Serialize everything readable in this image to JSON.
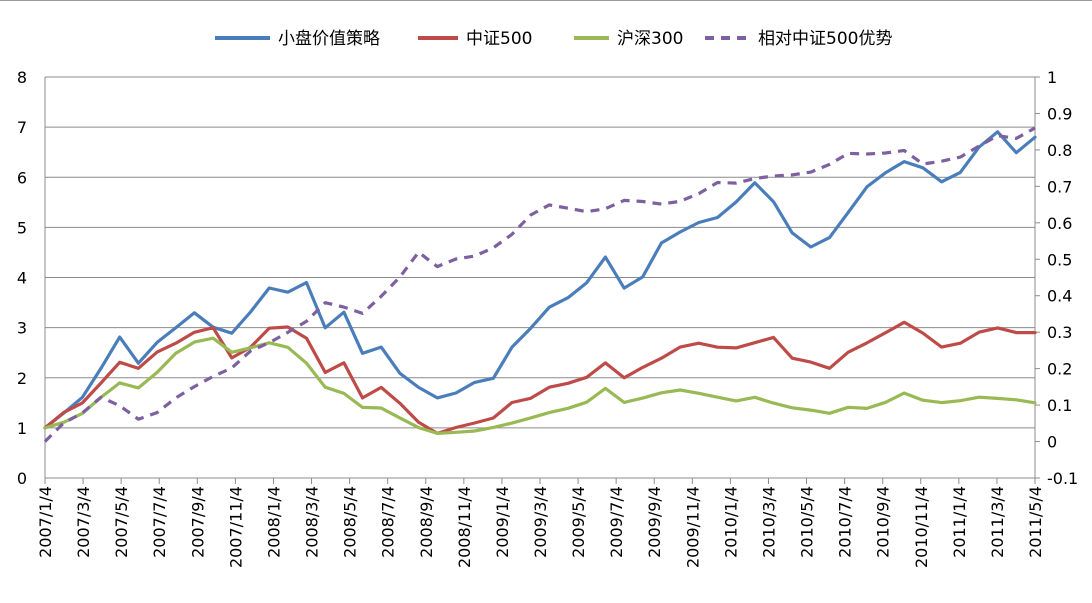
{
  "chart_data": {
    "type": "line",
    "title": "",
    "xlabel": "",
    "ylabel": "",
    "y_left": {
      "min": 0,
      "max": 8,
      "ticks": [
        "0",
        "1",
        "2",
        "3",
        "4",
        "5",
        "6",
        "7",
        "8"
      ]
    },
    "y_right": {
      "min": -0.1,
      "max": 1.0,
      "ticks": [
        "-0.1",
        "0",
        "0.1",
        "0.2",
        "0.3",
        "0.4",
        "0.5",
        "0.6",
        "0.7",
        "0.8",
        "0.9",
        "1"
      ]
    },
    "x_tick_labels": [
      "2007/1/4",
      "2007/3/4",
      "2007/5/4",
      "2007/7/4",
      "2007/9/4",
      "2007/11/4",
      "2008/1/4",
      "2008/3/4",
      "2008/5/4",
      "2008/7/4",
      "2008/9/4",
      "2008/11/4",
      "2009/1/4",
      "2009/3/4",
      "2009/5/4",
      "2009/7/4",
      "2009/9/4",
      "2009/11/4",
      "2010/1/4",
      "2010/3/4",
      "2010/5/4",
      "2010/7/4",
      "2010/9/4",
      "2010/11/4",
      "2011/1/4",
      "2011/3/4",
      "2011/5/4"
    ],
    "gridlines": "horizontal",
    "legend_position": "top",
    "x": [
      "2007/1",
      "2007/2",
      "2007/3",
      "2007/4",
      "2007/5",
      "2007/6",
      "2007/7",
      "2007/8",
      "2007/9",
      "2007/10",
      "2007/11",
      "2007/12",
      "2008/1",
      "2008/2",
      "2008/3",
      "2008/4",
      "2008/5",
      "2008/6",
      "2008/7",
      "2008/8",
      "2008/9",
      "2008/10",
      "2008/11",
      "2008/12",
      "2009/1",
      "2009/2",
      "2009/3",
      "2009/4",
      "2009/5",
      "2009/6",
      "2009/7",
      "2009/8",
      "2009/9",
      "2009/10",
      "2009/11",
      "2009/12",
      "2010/1",
      "2010/2",
      "2010/3",
      "2010/4",
      "2010/5",
      "2010/6",
      "2010/7",
      "2010/8",
      "2010/9",
      "2010/10",
      "2010/11",
      "2010/12",
      "2011/1",
      "2011/2",
      "2011/3",
      "2011/4",
      "2011/5",
      "2011/6"
    ],
    "series": [
      {
        "name": "小盘价值策略",
        "axis": "left",
        "color": "#4a7ebb",
        "style": "solid",
        "values": [
          1.0,
          1.3,
          1.6,
          2.2,
          2.8,
          2.3,
          2.7,
          3.0,
          3.3,
          3.0,
          2.9,
          3.3,
          3.8,
          3.7,
          3.9,
          3.0,
          3.3,
          2.5,
          2.6,
          2.1,
          1.8,
          1.6,
          1.7,
          1.9,
          2.0,
          2.6,
          3.0,
          3.4,
          3.6,
          3.9,
          4.4,
          3.8,
          4.0,
          4.7,
          4.9,
          5.1,
          5.2,
          5.5,
          5.9,
          5.5,
          4.9,
          4.6,
          4.8,
          5.3,
          5.8,
          6.1,
          6.3,
          6.2,
          5.9,
          6.1,
          6.6,
          6.9,
          6.5,
          6.8
        ]
      },
      {
        "name": "中证500",
        "axis": "left",
        "color": "#be4b48",
        "style": "solid",
        "values": [
          1.0,
          1.3,
          1.5,
          1.9,
          2.3,
          2.2,
          2.5,
          2.7,
          2.9,
          3.0,
          2.4,
          2.6,
          3.0,
          3.0,
          2.8,
          2.1,
          2.3,
          1.6,
          1.8,
          1.5,
          1.1,
          0.9,
          1.0,
          1.1,
          1.2,
          1.5,
          1.6,
          1.8,
          1.9,
          2.0,
          2.3,
          2.0,
          2.2,
          2.4,
          2.6,
          2.7,
          2.6,
          2.6,
          2.7,
          2.8,
          2.4,
          2.3,
          2.2,
          2.5,
          2.7,
          2.9,
          3.1,
          2.9,
          2.6,
          2.7,
          2.9,
          3.0,
          2.9,
          2.9
        ]
      },
      {
        "name": "沪深300",
        "axis": "left",
        "color": "#98b954",
        "style": "solid",
        "values": [
          1.0,
          1.1,
          1.3,
          1.6,
          1.9,
          1.8,
          2.1,
          2.5,
          2.7,
          2.8,
          2.5,
          2.6,
          2.7,
          2.6,
          2.3,
          1.8,
          1.7,
          1.4,
          1.4,
          1.2,
          1.0,
          0.9,
          0.9,
          0.95,
          1.0,
          1.1,
          1.2,
          1.3,
          1.4,
          1.5,
          1.8,
          1.5,
          1.6,
          1.7,
          1.75,
          1.7,
          1.6,
          1.55,
          1.6,
          1.5,
          1.4,
          1.35,
          1.3,
          1.4,
          1.4,
          1.5,
          1.7,
          1.55,
          1.5,
          1.55,
          1.6,
          1.6,
          1.55,
          1.5
        ]
      },
      {
        "name": "相对中证500优势",
        "axis": "right",
        "color": "#7d60a0",
        "style": "dashed",
        "values": [
          0.0,
          0.05,
          0.08,
          0.12,
          0.1,
          0.06,
          0.08,
          0.12,
          0.15,
          0.18,
          0.2,
          0.25,
          0.27,
          0.3,
          0.33,
          0.38,
          0.37,
          0.35,
          0.4,
          0.45,
          0.52,
          0.48,
          0.5,
          0.51,
          0.53,
          0.57,
          0.62,
          0.65,
          0.64,
          0.63,
          0.64,
          0.66,
          0.66,
          0.65,
          0.66,
          0.68,
          0.71,
          0.71,
          0.72,
          0.73,
          0.73,
          0.74,
          0.76,
          0.79,
          0.79,
          0.79,
          0.8,
          0.76,
          0.77,
          0.78,
          0.81,
          0.84,
          0.83,
          0.86
        ]
      }
    ]
  }
}
